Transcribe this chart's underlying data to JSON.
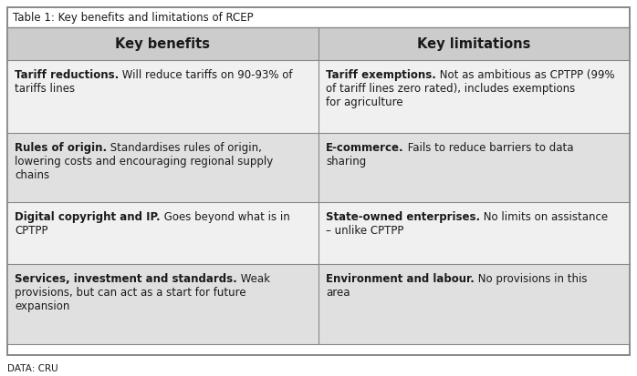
{
  "title": "Table 1: Key benefits and limitations of RCEP",
  "col_headers": [
    "Key benefits",
    "Key limitations"
  ],
  "rows": [
    {
      "left_bold": "Tariff reductions.",
      "left_normal": " Will reduce tariffs on 90-93% of tariffs lines",
      "right_bold": "Tariff exemptions.",
      "right_normal": " Not as ambitious as CPTPP (99% of tariff lines zero rated), includes exemptions for agriculture"
    },
    {
      "left_bold": "Rules of origin.",
      "left_normal": " Standardises rules of origin, lowering costs and encouraging regional supply chains",
      "right_bold": "E-commerce.",
      "right_normal": " Fails to reduce barriers to data sharing"
    },
    {
      "left_bold": "Digital copyright and IP.",
      "left_normal": " Goes beyond what is in CPTPP",
      "right_bold": "State-owned enterprises.",
      "right_normal": " No limits on assistance – unlike CPTPP"
    },
    {
      "left_bold": "Services, investment and standards.",
      "left_normal": " Weak provisions, but can act as a start for future expansion",
      "right_bold": "Environment and labour.",
      "right_normal": " No provisions in this area"
    }
  ],
  "footer": "DATA: CRU",
  "bg_color": "#ffffff",
  "header_bg": "#cccccc",
  "row_bg_light": "#f0f0f0",
  "row_bg_dark": "#e0e0e0",
  "border_color": "#888888",
  "text_color": "#1a1a1a",
  "header_fontsize": 10.5,
  "cell_fontsize": 8.5,
  "title_fontsize": 8.5,
  "footer_fontsize": 7.5
}
